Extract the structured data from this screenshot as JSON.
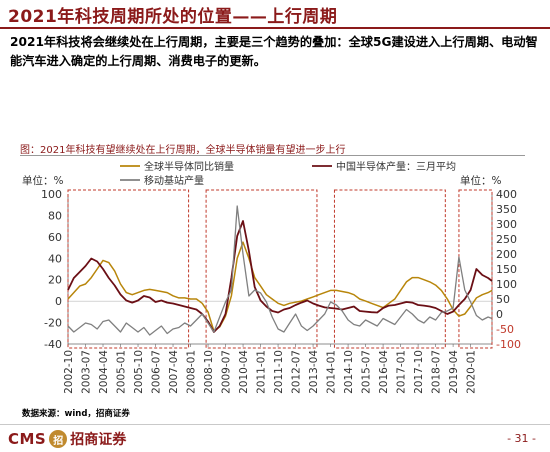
{
  "slide": {
    "title": "2021年科技周期所处的位置——上行周期",
    "body": "2021年科技将会继续处在上行周期，主要是三个趋势的叠加：全球5G建设进入上行周期、电动智能汽车进入确定的上行周期、消费电子的更新。",
    "caption": "图：2021年科技有望继续处在上行周期，全球半导体销量有望进一步上行",
    "source": "数据来源：wind，招商证券",
    "page_number": "- 31 -",
    "logo_text": "CMS",
    "logo_mark": "招",
    "logo_cn": "招商证券"
  },
  "colors": {
    "brand": "#8b1a1a",
    "series_global": "#b8860b",
    "series_china": "#6b0f15",
    "series_station": "#808080",
    "box": "#c0392b"
  },
  "chart_data": {
    "type": "line",
    "left_unit": "单位：%",
    "right_unit": "单位：%",
    "left_ylim": [
      -40,
      100
    ],
    "left_ticks": [
      "100",
      "80",
      "60",
      "40",
      "20",
      "0",
      "-20",
      "-40"
    ],
    "right_ylim": [
      -100,
      400
    ],
    "right_ticks": [
      "400",
      "350",
      "300",
      "250",
      "200",
      "150",
      "100",
      "50",
      "0",
      "-50",
      "-100"
    ],
    "x_ticks": [
      "2002-10",
      "2003-07",
      "2004-04",
      "2005-01",
      "2005-10",
      "2006-07",
      "2007-04",
      "2008-01",
      "2008-10",
      "2009-07",
      "2010-04",
      "2011-01",
      "2011-10",
      "2012-07",
      "2013-04",
      "2014-01",
      "2014-10",
      "2015-07",
      "2016-04",
      "2017-01",
      "2017-10",
      "2018-07",
      "2019-04",
      "2020-01"
    ],
    "x_range": [
      "2002-10",
      "2020-12"
    ],
    "legend_position": "top",
    "cycle_boxes": [
      {
        "start": "2002-10",
        "end": "2007-12"
      },
      {
        "start": "2008-09",
        "end": "2013-06"
      },
      {
        "start": "2014-03",
        "end": "2018-12"
      },
      {
        "start": "2019-07",
        "end": "2020-12"
      }
    ],
    "series": [
      {
        "name": "全球半导体同比销量",
        "axis": "left",
        "points": [
          [
            "2002-10",
            2
          ],
          [
            "2003-01",
            8
          ],
          [
            "2003-04",
            14
          ],
          [
            "2003-07",
            16
          ],
          [
            "2003-10",
            22
          ],
          [
            "2004-01",
            30
          ],
          [
            "2004-04",
            38
          ],
          [
            "2004-07",
            36
          ],
          [
            "2004-10",
            28
          ],
          [
            "2005-01",
            16
          ],
          [
            "2005-04",
            8
          ],
          [
            "2005-07",
            6
          ],
          [
            "2005-10",
            8
          ],
          [
            "2006-01",
            10
          ],
          [
            "2006-04",
            11
          ],
          [
            "2006-07",
            10
          ],
          [
            "2006-10",
            9
          ],
          [
            "2007-01",
            8
          ],
          [
            "2007-04",
            5
          ],
          [
            "2007-07",
            3
          ],
          [
            "2007-10",
            3
          ],
          [
            "2008-01",
            2
          ],
          [
            "2008-04",
            2
          ],
          [
            "2008-07",
            -2
          ],
          [
            "2008-10",
            -10
          ],
          [
            "2009-01",
            -28
          ],
          [
            "2009-04",
            -24
          ],
          [
            "2009-07",
            -14
          ],
          [
            "2009-10",
            5
          ],
          [
            "2010-01",
            40
          ],
          [
            "2010-04",
            55
          ],
          [
            "2010-07",
            40
          ],
          [
            "2010-10",
            22
          ],
          [
            "2011-01",
            14
          ],
          [
            "2011-04",
            6
          ],
          [
            "2011-07",
            2
          ],
          [
            "2011-10",
            -2
          ],
          [
            "2012-01",
            -4
          ],
          [
            "2012-04",
            -2
          ],
          [
            "2012-07",
            -1
          ],
          [
            "2012-10",
            0
          ],
          [
            "2013-01",
            2
          ],
          [
            "2013-04",
            4
          ],
          [
            "2013-07",
            6
          ],
          [
            "2013-10",
            8
          ],
          [
            "2014-01",
            10
          ],
          [
            "2014-04",
            10
          ],
          [
            "2014-07",
            9
          ],
          [
            "2014-10",
            8
          ],
          [
            "2015-01",
            6
          ],
          [
            "2015-04",
            2
          ],
          [
            "2015-07",
            0
          ],
          [
            "2015-10",
            -2
          ],
          [
            "2016-01",
            -4
          ],
          [
            "2016-04",
            -6
          ],
          [
            "2016-07",
            -2
          ],
          [
            "2016-10",
            2
          ],
          [
            "2017-01",
            10
          ],
          [
            "2017-04",
            18
          ],
          [
            "2017-07",
            22
          ],
          [
            "2017-10",
            22
          ],
          [
            "2018-01",
            20
          ],
          [
            "2018-04",
            18
          ],
          [
            "2018-07",
            15
          ],
          [
            "2018-10",
            10
          ],
          [
            "2019-01",
            2
          ],
          [
            "2019-04",
            -8
          ],
          [
            "2019-07",
            -14
          ],
          [
            "2019-10",
            -12
          ],
          [
            "2020-01",
            -5
          ],
          [
            "2020-04",
            3
          ],
          [
            "2020-07",
            6
          ],
          [
            "2020-10",
            8
          ],
          [
            "2020-12",
            10
          ]
        ]
      },
      {
        "name": "中国半导体产量：三月平均",
        "axis": "right",
        "points": [
          [
            "2002-10",
            80
          ],
          [
            "2003-01",
            120
          ],
          [
            "2003-04",
            140
          ],
          [
            "2003-07",
            160
          ],
          [
            "2003-10",
            185
          ],
          [
            "2004-01",
            175
          ],
          [
            "2004-04",
            150
          ],
          [
            "2004-07",
            120
          ],
          [
            "2004-10",
            95
          ],
          [
            "2005-01",
            65
          ],
          [
            "2005-04",
            45
          ],
          [
            "2005-07",
            38
          ],
          [
            "2005-10",
            45
          ],
          [
            "2006-01",
            60
          ],
          [
            "2006-04",
            55
          ],
          [
            "2006-07",
            40
          ],
          [
            "2006-10",
            45
          ],
          [
            "2007-01",
            38
          ],
          [
            "2007-04",
            35
          ],
          [
            "2007-07",
            30
          ],
          [
            "2007-10",
            25
          ],
          [
            "2008-01",
            20
          ],
          [
            "2008-04",
            15
          ],
          [
            "2008-07",
            0
          ],
          [
            "2008-10",
            -25
          ],
          [
            "2009-01",
            -60
          ],
          [
            "2009-04",
            -40
          ],
          [
            "2009-07",
            0
          ],
          [
            "2009-10",
            120
          ],
          [
            "2010-01",
            260
          ],
          [
            "2010-04",
            310
          ],
          [
            "2010-07",
            210
          ],
          [
            "2010-10",
            90
          ],
          [
            "2011-01",
            45
          ],
          [
            "2011-04",
            25
          ],
          [
            "2011-07",
            10
          ],
          [
            "2011-10",
            5
          ],
          [
            "2012-01",
            15
          ],
          [
            "2012-04",
            20
          ],
          [
            "2012-07",
            30
          ],
          [
            "2012-10",
            38
          ],
          [
            "2013-01",
            45
          ],
          [
            "2013-04",
            35
          ],
          [
            "2013-07",
            28
          ],
          [
            "2013-10",
            22
          ],
          [
            "2014-01",
            20
          ],
          [
            "2014-04",
            18
          ],
          [
            "2014-07",
            15
          ],
          [
            "2014-10",
            20
          ],
          [
            "2015-01",
            25
          ],
          [
            "2015-04",
            10
          ],
          [
            "2015-07",
            8
          ],
          [
            "2015-10",
            6
          ],
          [
            "2016-01",
            5
          ],
          [
            "2016-04",
            20
          ],
          [
            "2016-07",
            28
          ],
          [
            "2016-10",
            30
          ],
          [
            "2017-01",
            35
          ],
          [
            "2017-04",
            40
          ],
          [
            "2017-07",
            38
          ],
          [
            "2017-10",
            30
          ],
          [
            "2018-01",
            28
          ],
          [
            "2018-04",
            25
          ],
          [
            "2018-07",
            20
          ],
          [
            "2018-10",
            10
          ],
          [
            "2019-01",
            0
          ],
          [
            "2019-04",
            8
          ],
          [
            "2019-07",
            30
          ],
          [
            "2019-10",
            50
          ],
          [
            "2020-01",
            80
          ],
          [
            "2020-04",
            150
          ],
          [
            "2020-07",
            130
          ],
          [
            "2020-10",
            120
          ],
          [
            "2020-12",
            110
          ]
        ]
      },
      {
        "name": "移动基站产量",
        "axis": "right",
        "points": [
          [
            "2002-10",
            -40
          ],
          [
            "2003-01",
            -60
          ],
          [
            "2003-04",
            -45
          ],
          [
            "2003-07",
            -30
          ],
          [
            "2003-10",
            -35
          ],
          [
            "2004-01",
            -50
          ],
          [
            "2004-04",
            -25
          ],
          [
            "2004-07",
            -20
          ],
          [
            "2004-10",
            -40
          ],
          [
            "2005-01",
            -60
          ],
          [
            "2005-04",
            -30
          ],
          [
            "2005-07",
            -45
          ],
          [
            "2005-10",
            -60
          ],
          [
            "2006-01",
            -45
          ],
          [
            "2006-04",
            -70
          ],
          [
            "2006-07",
            -55
          ],
          [
            "2006-10",
            -40
          ],
          [
            "2007-01",
            -65
          ],
          [
            "2007-04",
            -50
          ],
          [
            "2007-07",
            -45
          ],
          [
            "2007-10",
            -30
          ],
          [
            "2008-01",
            -40
          ],
          [
            "2008-04",
            -20
          ],
          [
            "2008-07",
            0
          ],
          [
            "2008-10",
            -30
          ],
          [
            "2009-01",
            -60
          ],
          [
            "2009-04",
            -10
          ],
          [
            "2009-07",
            40
          ],
          [
            "2009-10",
            80
          ],
          [
            "2010-01",
            360
          ],
          [
            "2010-04",
            200
          ],
          [
            "2010-07",
            60
          ],
          [
            "2010-10",
            80
          ],
          [
            "2011-01",
            70
          ],
          [
            "2011-04",
            40
          ],
          [
            "2011-07",
            -10
          ],
          [
            "2011-10",
            -50
          ],
          [
            "2012-01",
            -60
          ],
          [
            "2012-04",
            -30
          ],
          [
            "2012-07",
            0
          ],
          [
            "2012-10",
            -40
          ],
          [
            "2013-01",
            -55
          ],
          [
            "2013-04",
            -40
          ],
          [
            "2013-07",
            -20
          ],
          [
            "2013-10",
            0
          ],
          [
            "2014-01",
            40
          ],
          [
            "2014-04",
            30
          ],
          [
            "2014-07",
            10
          ],
          [
            "2014-10",
            -20
          ],
          [
            "2015-01",
            -35
          ],
          [
            "2015-04",
            -40
          ],
          [
            "2015-07",
            -20
          ],
          [
            "2015-10",
            -30
          ],
          [
            "2016-01",
            -40
          ],
          [
            "2016-04",
            -15
          ],
          [
            "2016-07",
            -25
          ],
          [
            "2016-10",
            -35
          ],
          [
            "2017-01",
            -10
          ],
          [
            "2017-04",
            15
          ],
          [
            "2017-07",
            0
          ],
          [
            "2017-10",
            -20
          ],
          [
            "2018-01",
            -30
          ],
          [
            "2018-04",
            -10
          ],
          [
            "2018-07",
            -20
          ],
          [
            "2018-10",
            5
          ],
          [
            "2019-01",
            10
          ],
          [
            "2019-04",
            20
          ],
          [
            "2019-07",
            190
          ],
          [
            "2019-10",
            80
          ],
          [
            "2020-01",
            40
          ],
          [
            "2020-04",
            -5
          ],
          [
            "2020-07",
            -20
          ],
          [
            "2020-10",
            -10
          ],
          [
            "2020-12",
            -15
          ]
        ]
      }
    ]
  }
}
